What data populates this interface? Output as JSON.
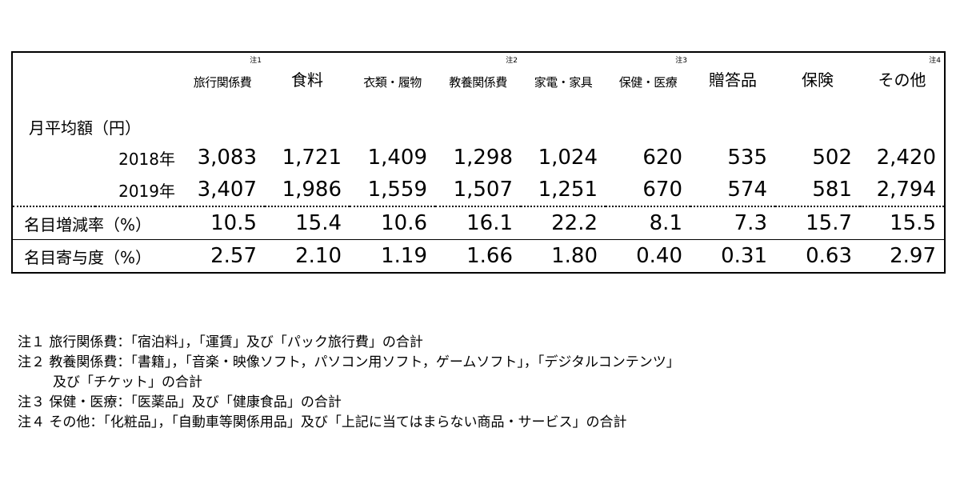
{
  "categories": [
    {
      "name": "旅行関係費",
      "note": "注1"
    },
    {
      "name": "食料",
      "note": ""
    },
    {
      "name": "衣類・履物",
      "note": ""
    },
    {
      "name": "教養関係費",
      "note": "注2"
    },
    {
      "name": "家電・家具",
      "note": ""
    },
    {
      "name": "保健・医療",
      "note": "注3"
    },
    {
      "name": "贈答品",
      "note": ""
    },
    {
      "name": "保険",
      "note": ""
    },
    {
      "name": "その他",
      "note": "注4"
    }
  ],
  "section_label": "月平均額（円）",
  "rows": [
    {
      "label": "2018年",
      "values": [
        "3,083",
        "1,721",
        "1,409",
        "1,298",
        "1,024",
        "620",
        "535",
        "502",
        "2,420"
      ]
    },
    {
      "label": "2019年",
      "values": [
        "3,407",
        "1,986",
        "1,559",
        "1,507",
        "1,251",
        "670",
        "574",
        "581",
        "2,794"
      ]
    },
    {
      "label": "名目増減率（%）",
      "values": [
        "10.5",
        "15.4",
        "10.6",
        "16.1",
        "22.2",
        "8.1",
        "7.3",
        "15.7",
        "15.5"
      ]
    },
    {
      "label": "名目寄与度（%）",
      "values": [
        "2.57",
        "2.10",
        "1.19",
        "1.66",
        "1.80",
        "0.40",
        "0.31",
        "0.63",
        "2.97"
      ]
    }
  ],
  "notes": [
    "注１ 旅行関係費：「宿泊料」，「運賃」及び「パック旅行費」の合計",
    "注２ 教養関係費：「書籍」，「音楽・映像ソフト，パソコン用ソフト，ゲームソフト」，「デジタルコンテンツ」",
    "及び「チケット」の合計",
    "注３ 保健・医療：「医薬品」及び「健康食品」の合計",
    "注４ その他：「化粧品」，「自動車等関係用品」及び「上記に当てはまらない商品・サービス」の合計"
  ]
}
